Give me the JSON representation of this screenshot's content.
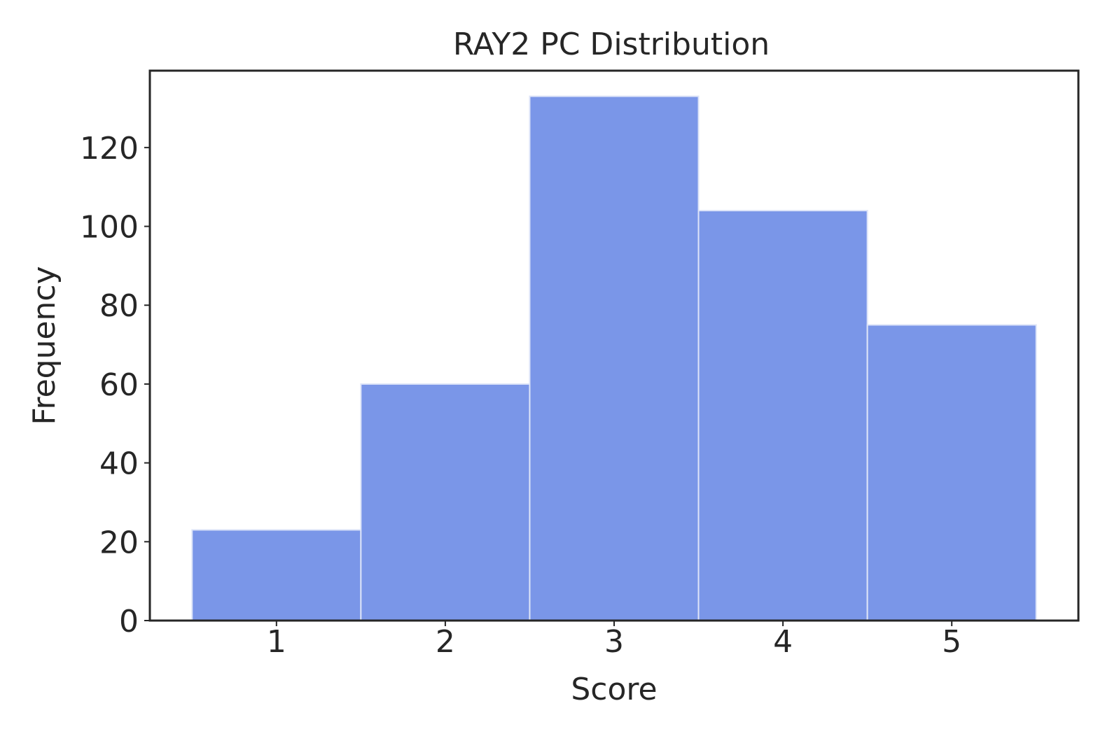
{
  "chart_data": {
    "type": "bar",
    "title": "RAY2 PC Distribution",
    "xlabel": "Score",
    "ylabel": "Frequency",
    "categories": [
      "1",
      "2",
      "3",
      "4",
      "5"
    ],
    "values": [
      23,
      60,
      133,
      104,
      75
    ],
    "xlim": [
      0.25,
      5.75
    ],
    "ylim": [
      0,
      139.5
    ],
    "yticks": [
      0,
      20,
      40,
      60,
      80,
      100,
      120
    ],
    "grid": false,
    "bar_color": "#7a96e8",
    "bar_edge_color": "#dde4f8",
    "axis_color": "#262626"
  }
}
